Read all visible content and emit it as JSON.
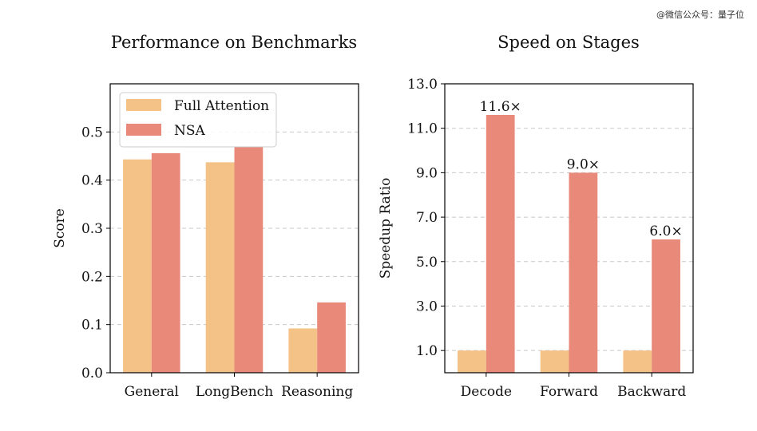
{
  "watermark": "@微信公众号：量子位",
  "colors": {
    "full_attention": "#F4C287",
    "nsa": "#E8897A",
    "grid": "#c8c8c8",
    "axis": "#000000"
  },
  "chart_data": [
    {
      "type": "bar",
      "title": "Performance on Benchmarks",
      "xlabel": "",
      "ylabel": "Score",
      "categories": [
        "General",
        "LongBench",
        "Reasoning"
      ],
      "series": [
        {
          "name": "Full Attention",
          "values": [
            0.443,
            0.437,
            0.092
          ]
        },
        {
          "name": "NSA",
          "values": [
            0.456,
            0.469,
            0.146
          ]
        }
      ],
      "ylim": [
        0,
        0.6
      ],
      "yticks": [
        0.0,
        0.1,
        0.2,
        0.3,
        0.4,
        0.5
      ],
      "ytick_labels": [
        "0.0",
        "0.1",
        "0.2",
        "0.3",
        "0.4",
        "0.5"
      ],
      "grid": "horizontal dashed",
      "legend": "top-left"
    },
    {
      "type": "bar",
      "title": "Speed on Stages",
      "xlabel": "",
      "ylabel": "Speedup Ratio",
      "categories": [
        "Decode",
        "Forward",
        "Backward"
      ],
      "series": [
        {
          "name": "Full Attention",
          "values": [
            1.0,
            1.0,
            1.0
          ]
        },
        {
          "name": "NSA",
          "values": [
            11.6,
            9.0,
            6.0
          ]
        }
      ],
      "data_labels": [
        "11.6×",
        "9.0×",
        "6.0×"
      ],
      "ylim": [
        0,
        13.0
      ],
      "yticks": [
        1.0,
        3.0,
        5.0,
        7.0,
        9.0,
        11.0,
        13.0
      ],
      "ytick_labels": [
        "1.0",
        "3.0",
        "5.0",
        "7.0",
        "9.0",
        "11.0",
        "13.0"
      ],
      "grid": "horizontal dashed",
      "legend": "none"
    }
  ]
}
